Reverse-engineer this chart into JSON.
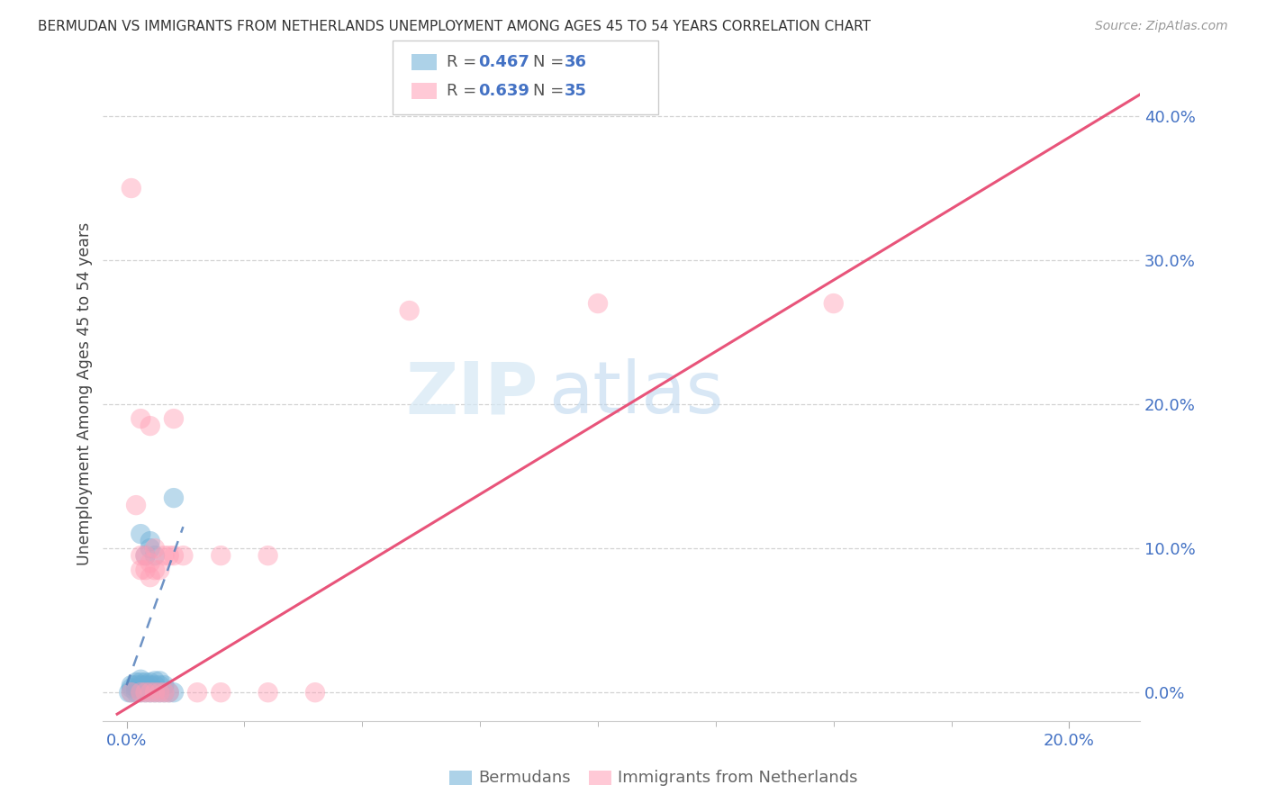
{
  "title": "BERMUDAN VS IMMIGRANTS FROM NETHERLANDS UNEMPLOYMENT AMONG AGES 45 TO 54 YEARS CORRELATION CHART",
  "source": "Source: ZipAtlas.com",
  "ylabel": "Unemployment Among Ages 45 to 54 years",
  "xtick_labels": [
    "0.0%",
    "20.0%"
  ],
  "xtick_positions": [
    0.0,
    0.2
  ],
  "ylabel_ticks": [
    0.0,
    0.1,
    0.2,
    0.3,
    0.4
  ],
  "xlim": [
    -0.005,
    0.215
  ],
  "ylim": [
    -0.02,
    0.435
  ],
  "blue_color": "#6baed6",
  "pink_color": "#ff9eb5",
  "blue_line_color": "#5580bb",
  "pink_line_color": "#e8547a",
  "blue_line": {
    "x0": 0.0,
    "y0": 0.005,
    "x1": 0.012,
    "y1": 0.115
  },
  "pink_line": {
    "x0": -0.002,
    "y0": -0.015,
    "x1": 0.215,
    "y1": 0.415
  },
  "blue_scatter": [
    [
      0.0005,
      0.0
    ],
    [
      0.001,
      0.0
    ],
    [
      0.001,
      0.003
    ],
    [
      0.001,
      0.005
    ],
    [
      0.002,
      0.0
    ],
    [
      0.002,
      0.003
    ],
    [
      0.002,
      0.005
    ],
    [
      0.002,
      0.007
    ],
    [
      0.003,
      0.0
    ],
    [
      0.003,
      0.003
    ],
    [
      0.003,
      0.005
    ],
    [
      0.003,
      0.007
    ],
    [
      0.003,
      0.009
    ],
    [
      0.003,
      0.11
    ],
    [
      0.004,
      0.0
    ],
    [
      0.004,
      0.003
    ],
    [
      0.004,
      0.005
    ],
    [
      0.004,
      0.007
    ],
    [
      0.004,
      0.095
    ],
    [
      0.005,
      0.0
    ],
    [
      0.005,
      0.005
    ],
    [
      0.005,
      0.007
    ],
    [
      0.005,
      0.1
    ],
    [
      0.005,
      0.105
    ],
    [
      0.006,
      0.0
    ],
    [
      0.006,
      0.005
    ],
    [
      0.006,
      0.008
    ],
    [
      0.006,
      0.095
    ],
    [
      0.007,
      0.0
    ],
    [
      0.007,
      0.005
    ],
    [
      0.007,
      0.008
    ],
    [
      0.008,
      0.0
    ],
    [
      0.008,
      0.005
    ],
    [
      0.009,
      0.0
    ],
    [
      0.01,
      0.0
    ],
    [
      0.01,
      0.135
    ]
  ],
  "pink_scatter": [
    [
      0.001,
      0.0
    ],
    [
      0.001,
      0.35
    ],
    [
      0.002,
      0.13
    ],
    [
      0.003,
      0.0
    ],
    [
      0.003,
      0.085
    ],
    [
      0.003,
      0.095
    ],
    [
      0.003,
      0.19
    ],
    [
      0.004,
      0.0
    ],
    [
      0.004,
      0.085
    ],
    [
      0.004,
      0.095
    ],
    [
      0.005,
      0.0
    ],
    [
      0.005,
      0.08
    ],
    [
      0.005,
      0.09
    ],
    [
      0.005,
      0.185
    ],
    [
      0.006,
      0.0
    ],
    [
      0.006,
      0.085
    ],
    [
      0.006,
      0.1
    ],
    [
      0.007,
      0.0
    ],
    [
      0.007,
      0.085
    ],
    [
      0.008,
      0.0
    ],
    [
      0.008,
      0.095
    ],
    [
      0.009,
      0.0
    ],
    [
      0.009,
      0.095
    ],
    [
      0.01,
      0.095
    ],
    [
      0.01,
      0.19
    ],
    [
      0.012,
      0.095
    ],
    [
      0.015,
      0.0
    ],
    [
      0.02,
      0.0
    ],
    [
      0.02,
      0.095
    ],
    [
      0.03,
      0.0
    ],
    [
      0.03,
      0.095
    ],
    [
      0.04,
      0.0
    ],
    [
      0.06,
      0.265
    ],
    [
      0.1,
      0.27
    ],
    [
      0.15,
      0.27
    ]
  ],
  "watermark": "ZIPatlas",
  "background_color": "#ffffff",
  "grid_color": "#d3d3d3"
}
